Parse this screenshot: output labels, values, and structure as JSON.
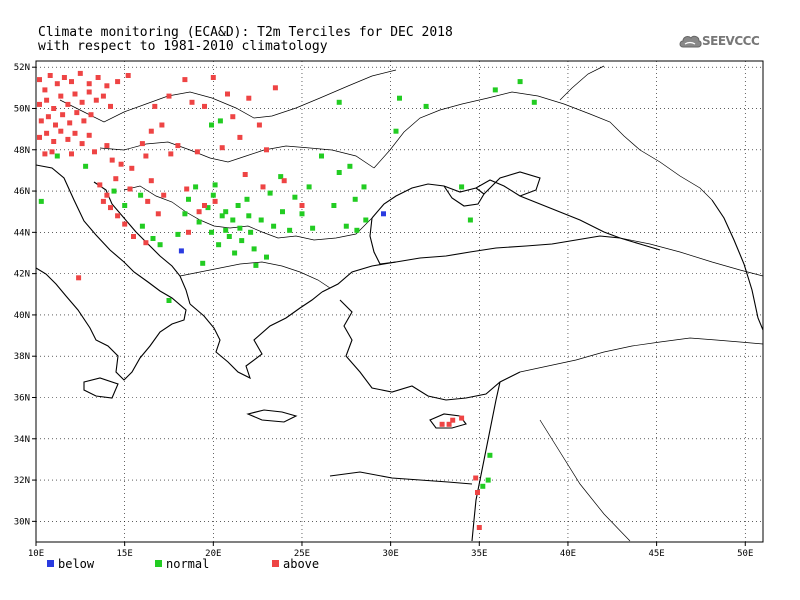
{
  "title": {
    "line1": "Climate monitoring (ECA&D): T2m Terciles for DEC 2018",
    "line2": "with respect to 1981-2010 climatology"
  },
  "logo": {
    "text": "SEEVCCC",
    "icon": "cloud-logo-icon",
    "color": "#777777"
  },
  "legend": [
    {
      "label": "below",
      "color": "#2a3be0"
    },
    {
      "label": "normal",
      "color": "#22cc22"
    },
    {
      "label": "above",
      "color": "#ee4444"
    }
  ],
  "chart_data": {
    "type": "scatter",
    "xlim": [
      10,
      51
    ],
    "ylim": [
      29,
      52.3
    ],
    "x_ticks": [
      10,
      15,
      20,
      25,
      30,
      35,
      40,
      45,
      50
    ],
    "x_tick_labels": [
      "10E",
      "15E",
      "20E",
      "25E",
      "30E",
      "35E",
      "40E",
      "45E",
      "50E"
    ],
    "y_ticks": [
      30,
      32,
      34,
      36,
      38,
      40,
      42,
      44,
      46,
      48,
      50,
      52
    ],
    "y_tick_labels": [
      "30N",
      "32N",
      "34N",
      "36N",
      "38N",
      "40N",
      "42N",
      "44N",
      "46N",
      "48N",
      "50N",
      "52N"
    ],
    "grid": true,
    "legend_position": "bottom-left",
    "series": [
      {
        "name": "below",
        "color": "#2a3be0",
        "points": [
          [
            29.6,
            44.9
          ],
          [
            18.2,
            43.1
          ]
        ]
      },
      {
        "name": "normal",
        "color": "#22cc22",
        "points": [
          [
            10.3,
            45.5
          ],
          [
            11.2,
            47.7
          ],
          [
            12.8,
            47.2
          ],
          [
            14.4,
            46.0
          ],
          [
            15.0,
            45.3
          ],
          [
            15.9,
            45.8
          ],
          [
            16.0,
            44.3
          ],
          [
            16.6,
            43.7
          ],
          [
            17.0,
            43.4
          ],
          [
            17.5,
            40.7
          ],
          [
            18.0,
            43.9
          ],
          [
            18.4,
            44.9
          ],
          [
            18.6,
            45.6
          ],
          [
            19.0,
            46.2
          ],
          [
            19.2,
            44.5
          ],
          [
            19.4,
            42.5
          ],
          [
            19.7,
            45.2
          ],
          [
            19.9,
            44.0
          ],
          [
            20.0,
            45.8
          ],
          [
            20.1,
            46.3
          ],
          [
            20.3,
            43.4
          ],
          [
            20.5,
            44.8
          ],
          [
            20.7,
            45.0
          ],
          [
            20.7,
            44.1
          ],
          [
            20.9,
            43.8
          ],
          [
            21.1,
            44.6
          ],
          [
            21.2,
            43.0
          ],
          [
            21.4,
            45.3
          ],
          [
            21.5,
            44.2
          ],
          [
            21.6,
            43.6
          ],
          [
            21.9,
            45.6
          ],
          [
            22.0,
            44.8
          ],
          [
            22.1,
            44.0
          ],
          [
            22.3,
            43.2
          ],
          [
            22.4,
            42.4
          ],
          [
            22.7,
            44.6
          ],
          [
            23.0,
            42.8
          ],
          [
            23.2,
            45.9
          ],
          [
            23.4,
            44.3
          ],
          [
            23.8,
            46.7
          ],
          [
            23.9,
            45.0
          ],
          [
            24.3,
            44.1
          ],
          [
            24.6,
            45.7
          ],
          [
            25.0,
            44.9
          ],
          [
            25.4,
            46.2
          ],
          [
            25.6,
            44.2
          ],
          [
            26.1,
            47.7
          ],
          [
            26.8,
            45.3
          ],
          [
            27.1,
            46.9
          ],
          [
            27.5,
            44.3
          ],
          [
            27.7,
            47.2
          ],
          [
            28.0,
            45.6
          ],
          [
            28.5,
            46.2
          ],
          [
            28.6,
            44.6
          ],
          [
            28.1,
            44.1
          ],
          [
            19.9,
            49.2
          ],
          [
            20.4,
            49.4
          ],
          [
            27.1,
            50.3
          ],
          [
            30.5,
            50.5
          ],
          [
            30.3,
            48.9
          ],
          [
            32.0,
            50.1
          ],
          [
            34.0,
            46.2
          ],
          [
            34.5,
            44.6
          ],
          [
            35.9,
            50.9
          ],
          [
            37.3,
            51.3
          ],
          [
            38.1,
            50.3
          ],
          [
            35.6,
            33.2
          ],
          [
            35.5,
            32.0
          ],
          [
            35.2,
            31.7
          ]
        ]
      },
      {
        "name": "above",
        "color": "#ee4444",
        "points": [
          [
            10.2,
            51.4
          ],
          [
            10.5,
            50.9
          ],
          [
            10.8,
            51.6
          ],
          [
            11.2,
            51.2
          ],
          [
            11.6,
            51.5
          ],
          [
            12.0,
            51.3
          ],
          [
            12.5,
            51.7
          ],
          [
            13.0,
            51.2
          ],
          [
            13.5,
            51.5
          ],
          [
            14.0,
            51.1
          ],
          [
            14.6,
            51.3
          ],
          [
            15.2,
            51.6
          ],
          [
            10.2,
            50.2
          ],
          [
            10.6,
            50.4
          ],
          [
            11.0,
            50.0
          ],
          [
            11.4,
            50.6
          ],
          [
            11.8,
            50.2
          ],
          [
            12.2,
            50.7
          ],
          [
            12.6,
            50.3
          ],
          [
            13.0,
            50.8
          ],
          [
            13.4,
            50.4
          ],
          [
            13.8,
            50.6
          ],
          [
            14.2,
            50.1
          ],
          [
            10.3,
            49.4
          ],
          [
            10.7,
            49.6
          ],
          [
            11.1,
            49.2
          ],
          [
            11.5,
            49.7
          ],
          [
            11.9,
            49.3
          ],
          [
            12.3,
            49.8
          ],
          [
            12.7,
            49.4
          ],
          [
            13.1,
            49.7
          ],
          [
            10.2,
            48.6
          ],
          [
            10.6,
            48.8
          ],
          [
            11.0,
            48.4
          ],
          [
            11.4,
            48.9
          ],
          [
            11.8,
            48.5
          ],
          [
            12.2,
            48.8
          ],
          [
            12.6,
            48.3
          ],
          [
            13.0,
            48.7
          ],
          [
            10.5,
            47.8
          ],
          [
            10.9,
            47.9
          ],
          [
            12.0,
            47.8
          ],
          [
            13.3,
            47.9
          ],
          [
            14.0,
            48.2
          ],
          [
            14.3,
            47.5
          ],
          [
            14.8,
            47.3
          ],
          [
            15.4,
            47.1
          ],
          [
            16.2,
            47.7
          ],
          [
            16.0,
            48.3
          ],
          [
            16.5,
            48.9
          ],
          [
            17.1,
            49.2
          ],
          [
            16.7,
            50.1
          ],
          [
            17.5,
            50.6
          ],
          [
            18.4,
            51.4
          ],
          [
            18.8,
            50.3
          ],
          [
            19.5,
            50.1
          ],
          [
            20.0,
            51.5
          ],
          [
            20.8,
            50.7
          ],
          [
            21.1,
            49.6
          ],
          [
            22.0,
            50.5
          ],
          [
            22.6,
            49.2
          ],
          [
            23.5,
            51.0
          ],
          [
            23.0,
            48.0
          ],
          [
            21.5,
            48.6
          ],
          [
            20.5,
            48.1
          ],
          [
            19.1,
            47.9
          ],
          [
            18.0,
            48.2
          ],
          [
            17.6,
            47.8
          ],
          [
            14.0,
            45.8
          ],
          [
            14.5,
            46.6
          ],
          [
            13.6,
            46.3
          ],
          [
            13.8,
            45.5
          ],
          [
            14.2,
            45.2
          ],
          [
            14.6,
            44.8
          ],
          [
            15.0,
            44.4
          ],
          [
            15.3,
            46.1
          ],
          [
            16.5,
            46.5
          ],
          [
            16.3,
            45.5
          ],
          [
            17.2,
            45.8
          ],
          [
            18.5,
            46.1
          ],
          [
            19.5,
            45.3
          ],
          [
            15.5,
            43.8
          ],
          [
            16.2,
            43.5
          ],
          [
            16.9,
            44.9
          ],
          [
            18.6,
            44.0
          ],
          [
            19.2,
            45.0
          ],
          [
            20.1,
            45.5
          ],
          [
            21.8,
            46.8
          ],
          [
            22.8,
            46.2
          ],
          [
            24.0,
            46.5
          ],
          [
            25.0,
            45.3
          ],
          [
            12.4,
            41.8
          ],
          [
            32.9,
            34.7
          ],
          [
            33.3,
            34.7
          ],
          [
            33.5,
            34.9
          ],
          [
            34.0,
            35.0
          ],
          [
            34.8,
            32.1
          ],
          [
            34.9,
            31.4
          ],
          [
            35.0,
            29.7
          ]
        ]
      }
    ]
  }
}
